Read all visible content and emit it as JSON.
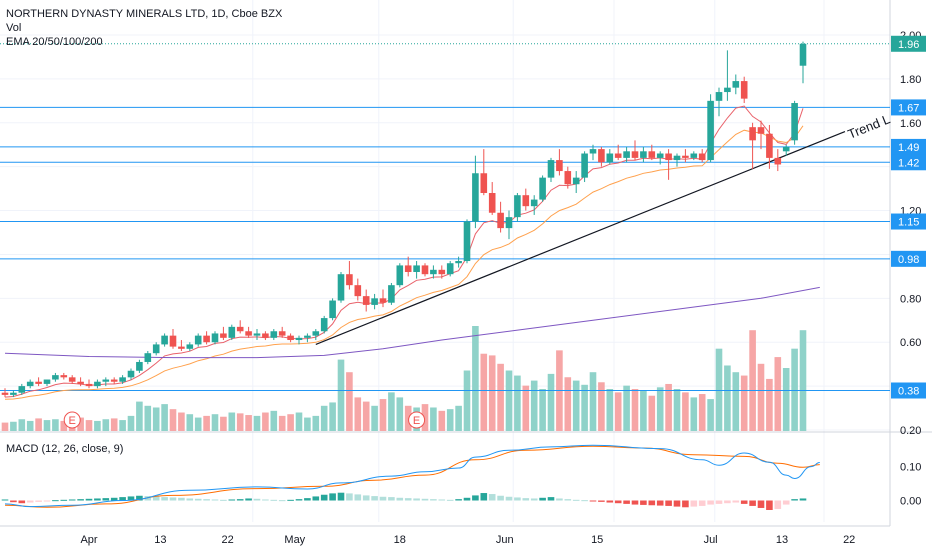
{
  "header": {
    "symbol_title": "NORTHERN DYNASTY MINERALS LTD, 1D, Cboe BZX",
    "volume_label": "Vol",
    "ema_label": "EMA 20/50/100/200",
    "macd_label": "MACD (12, 26, close, 9)"
  },
  "colors": {
    "up": "#26a69a",
    "down": "#ef5350",
    "vol_up": "#8fd2c9",
    "vol_down": "#f6a6a6",
    "level_line": "#2196f3",
    "ema20": "#e9626b",
    "ema50": "#ffa14d",
    "ema100": "#7e57c2",
    "macd_line": "#2196f3",
    "signal_line": "#ff6d00",
    "last_price_line": "#26a69a"
  },
  "chart_data": {
    "type": "candlestick",
    "x_tick_labels": [
      "Apr",
      "13",
      "22",
      "May",
      "18",
      "Jun",
      "15",
      "Jul",
      "13",
      "22"
    ],
    "y_tick_labels": [
      "2.00",
      "1.80",
      "1.60",
      "1.20",
      "0.80",
      "0.60",
      "0.20"
    ],
    "y_range": [
      0.2,
      2.05
    ],
    "horizontal_levels": [
      {
        "label": "1.67",
        "value": 1.67
      },
      {
        "label": "1.49",
        "value": 1.49
      },
      {
        "label": "1.42",
        "value": 1.42
      },
      {
        "label": "1.15",
        "value": 1.15
      },
      {
        "label": "0.98",
        "value": 0.98
      },
      {
        "label": "0.38",
        "value": 0.38
      }
    ],
    "last_price": {
      "label": "1.96",
      "value": 1.96
    },
    "trend_line": {
      "label": "Trend L",
      "start": {
        "x": 37,
        "y": 0.59
      },
      "end": {
        "x": 100,
        "y": 1.56
      }
    },
    "earnings_markers": [
      {
        "x": 8,
        "label": "E"
      },
      {
        "x": 49,
        "label": "E"
      }
    ],
    "candles": [
      [
        0.37,
        0.39,
        0.35,
        0.36
      ],
      [
        0.36,
        0.38,
        0.35,
        0.37
      ],
      [
        0.37,
        0.41,
        0.36,
        0.4
      ],
      [
        0.4,
        0.43,
        0.39,
        0.42
      ],
      [
        0.42,
        0.44,
        0.4,
        0.41
      ],
      [
        0.41,
        0.43,
        0.4,
        0.43
      ],
      [
        0.43,
        0.46,
        0.42,
        0.45
      ],
      [
        0.45,
        0.46,
        0.43,
        0.44
      ],
      [
        0.44,
        0.45,
        0.41,
        0.42
      ],
      [
        0.42,
        0.44,
        0.4,
        0.41
      ],
      [
        0.41,
        0.43,
        0.39,
        0.4
      ],
      [
        0.4,
        0.43,
        0.39,
        0.42
      ],
      [
        0.42,
        0.44,
        0.4,
        0.43
      ],
      [
        0.43,
        0.44,
        0.41,
        0.42
      ],
      [
        0.42,
        0.45,
        0.41,
        0.44
      ],
      [
        0.44,
        0.48,
        0.43,
        0.47
      ],
      [
        0.47,
        0.52,
        0.46,
        0.51
      ],
      [
        0.51,
        0.56,
        0.5,
        0.55
      ],
      [
        0.55,
        0.6,
        0.54,
        0.59
      ],
      [
        0.59,
        0.64,
        0.58,
        0.63
      ],
      [
        0.63,
        0.66,
        0.57,
        0.58
      ],
      [
        0.58,
        0.61,
        0.56,
        0.57
      ],
      [
        0.57,
        0.6,
        0.56,
        0.59
      ],
      [
        0.59,
        0.64,
        0.58,
        0.63
      ],
      [
        0.63,
        0.65,
        0.59,
        0.6
      ],
      [
        0.6,
        0.65,
        0.59,
        0.64
      ],
      [
        0.64,
        0.67,
        0.61,
        0.62
      ],
      [
        0.62,
        0.68,
        0.61,
        0.67
      ],
      [
        0.67,
        0.7,
        0.64,
        0.65
      ],
      [
        0.65,
        0.67,
        0.62,
        0.63
      ],
      [
        0.63,
        0.66,
        0.61,
        0.64
      ],
      [
        0.64,
        0.65,
        0.61,
        0.62
      ],
      [
        0.62,
        0.66,
        0.61,
        0.65
      ],
      [
        0.65,
        0.67,
        0.62,
        0.63
      ],
      [
        0.63,
        0.64,
        0.6,
        0.61
      ],
      [
        0.61,
        0.63,
        0.59,
        0.62
      ],
      [
        0.62,
        0.64,
        0.6,
        0.63
      ],
      [
        0.63,
        0.66,
        0.61,
        0.65
      ],
      [
        0.65,
        0.72,
        0.64,
        0.71
      ],
      [
        0.71,
        0.8,
        0.7,
        0.79
      ],
      [
        0.79,
        0.92,
        0.78,
        0.91
      ],
      [
        0.91,
        0.97,
        0.84,
        0.86
      ],
      [
        0.86,
        0.89,
        0.79,
        0.81
      ],
      [
        0.81,
        0.84,
        0.74,
        0.77
      ],
      [
        0.77,
        0.82,
        0.75,
        0.8
      ],
      [
        0.8,
        0.84,
        0.76,
        0.78
      ],
      [
        0.78,
        0.87,
        0.77,
        0.86
      ],
      [
        0.86,
        0.96,
        0.85,
        0.95
      ],
      [
        0.95,
        0.99,
        0.9,
        0.92
      ],
      [
        0.92,
        0.97,
        0.89,
        0.95
      ],
      [
        0.95,
        0.96,
        0.9,
        0.91
      ],
      [
        0.91,
        0.95,
        0.89,
        0.93
      ],
      [
        0.93,
        0.95,
        0.89,
        0.91
      ],
      [
        0.91,
        0.97,
        0.9,
        0.96
      ],
      [
        0.96,
        0.99,
        0.94,
        0.97
      ],
      [
        0.97,
        1.16,
        0.96,
        1.15
      ],
      [
        1.15,
        1.45,
        1.12,
        1.37
      ],
      [
        1.37,
        1.48,
        1.27,
        1.28
      ],
      [
        1.28,
        1.33,
        1.18,
        1.19
      ],
      [
        1.19,
        1.24,
        1.1,
        1.12
      ],
      [
        1.12,
        1.2,
        1.07,
        1.17
      ],
      [
        1.17,
        1.28,
        1.15,
        1.27
      ],
      [
        1.27,
        1.3,
        1.2,
        1.22
      ],
      [
        1.22,
        1.27,
        1.18,
        1.25
      ],
      [
        1.25,
        1.36,
        1.24,
        1.35
      ],
      [
        1.35,
        1.44,
        1.33,
        1.43
      ],
      [
        1.43,
        1.48,
        1.36,
        1.38
      ],
      [
        1.38,
        1.4,
        1.3,
        1.32
      ],
      [
        1.32,
        1.38,
        1.28,
        1.35
      ],
      [
        1.35,
        1.47,
        1.33,
        1.46
      ],
      [
        1.46,
        1.5,
        1.43,
        1.48
      ],
      [
        1.48,
        1.49,
        1.4,
        1.42
      ],
      [
        1.42,
        1.48,
        1.41,
        1.46
      ],
      [
        1.46,
        1.5,
        1.43,
        1.44
      ],
      [
        1.44,
        1.49,
        1.42,
        1.47
      ],
      [
        1.47,
        1.52,
        1.43,
        1.44
      ],
      [
        1.44,
        1.49,
        1.42,
        1.47
      ],
      [
        1.47,
        1.5,
        1.43,
        1.44
      ],
      [
        1.44,
        1.47,
        1.41,
        1.46
      ],
      [
        1.46,
        1.48,
        1.34,
        1.43
      ],
      [
        1.43,
        1.46,
        1.4,
        1.45
      ],
      [
        1.45,
        1.48,
        1.42,
        1.44
      ],
      [
        1.44,
        1.47,
        1.43,
        1.46
      ],
      [
        1.46,
        1.48,
        1.42,
        1.43
      ],
      [
        1.43,
        1.73,
        1.42,
        1.7
      ],
      [
        1.7,
        1.76,
        1.63,
        1.74
      ],
      [
        1.74,
        1.93,
        1.7,
        1.76
      ],
      [
        1.76,
        1.82,
        1.73,
        1.79
      ],
      [
        1.79,
        1.81,
        1.69,
        1.71
      ],
      [
        1.58,
        1.6,
        1.39,
        1.52
      ],
      [
        1.58,
        1.61,
        1.48,
        1.55
      ],
      [
        1.55,
        1.59,
        1.39,
        1.44
      ],
      [
        1.44,
        1.48,
        1.38,
        1.41
      ],
      [
        1.47,
        1.5,
        1.45,
        1.49
      ],
      [
        1.52,
        1.7,
        1.5,
        1.69
      ],
      [
        1.86,
        1.97,
        1.78,
        1.96
      ]
    ],
    "volumes": [
      10,
      11,
      14,
      12,
      15,
      13,
      14,
      12,
      18,
      16,
      13,
      12,
      14,
      15,
      13,
      18,
      35,
      30,
      28,
      32,
      26,
      22,
      20,
      16,
      18,
      20,
      17,
      22,
      21,
      19,
      18,
      22,
      24,
      18,
      20,
      22,
      16,
      18,
      30,
      34,
      85,
      70,
      40,
      35,
      30,
      38,
      46,
      40,
      30,
      28,
      32,
      28,
      24,
      26,
      30,
      72,
      125,
      92,
      90,
      80,
      72,
      66,
      54,
      60,
      50,
      68,
      96,
      64,
      60,
      55,
      70,
      58,
      50,
      46,
      54,
      50,
      48,
      42,
      52,
      56,
      50,
      46,
      40,
      44,
      38,
      98,
      78,
      70,
      66,
      120,
      80,
      62,
      88,
      75,
      98,
      120
    ],
    "macd_panel": {
      "y_tick_labels": [
        "0.10",
        "0.00"
      ],
      "y_range": [
        -0.1,
        0.2
      ],
      "macd_key_points": [
        [
          0,
          -0.01
        ],
        [
          3,
          -0.018
        ],
        [
          8,
          -0.014
        ],
        [
          14,
          0.0
        ],
        [
          22,
          0.03
        ],
        [
          30,
          0.04
        ],
        [
          36,
          0.034
        ],
        [
          40,
          0.052
        ],
        [
          46,
          0.072
        ],
        [
          50,
          0.085
        ],
        [
          54,
          0.096
        ],
        [
          56,
          0.128
        ],
        [
          60,
          0.148
        ],
        [
          65,
          0.158
        ],
        [
          70,
          0.163
        ],
        [
          78,
          0.153
        ],
        [
          83,
          0.12
        ],
        [
          85,
          0.104
        ],
        [
          88,
          0.14
        ],
        [
          91,
          0.113
        ],
        [
          93,
          0.075
        ],
        [
          94,
          0.065
        ],
        [
          96,
          0.1
        ],
        [
          97,
          0.112
        ]
      ],
      "signal_key_points": [
        [
          0,
          -0.014
        ],
        [
          5,
          -0.02
        ],
        [
          12,
          -0.01
        ],
        [
          20,
          0.015
        ],
        [
          30,
          0.035
        ],
        [
          38,
          0.042
        ],
        [
          44,
          0.06
        ],
        [
          50,
          0.075
        ],
        [
          56,
          0.12
        ],
        [
          62,
          0.148
        ],
        [
          70,
          0.16
        ],
        [
          76,
          0.155
        ],
        [
          82,
          0.135
        ],
        [
          88,
          0.13
        ],
        [
          92,
          0.11
        ],
        [
          95,
          0.098
        ],
        [
          97,
          0.106
        ]
      ],
      "histogram": [
        0.003,
        -0.005,
        -0.008,
        -0.006,
        -0.004,
        -0.002,
        0.001,
        0.002,
        0.003,
        0.004,
        0.005,
        0.006,
        0.007,
        0.008,
        0.01,
        0.012,
        0.014,
        0.013,
        0.012,
        0.01,
        0.009,
        0.008,
        0.006,
        0.005,
        0.004,
        0.003,
        0.002,
        0.003,
        0.004,
        0.006,
        0.005,
        0.003,
        0.002,
        0.001,
        0.002,
        0.004,
        0.007,
        0.012,
        0.017,
        0.021,
        0.023,
        0.021,
        0.018,
        0.015,
        0.013,
        0.011,
        0.01,
        0.008,
        0.007,
        0.006,
        0.005,
        0.004,
        0.003,
        0.002,
        0.004,
        0.008,
        0.015,
        0.022,
        0.019,
        0.014,
        0.011,
        0.009,
        0.007,
        0.006,
        0.008,
        0.01,
        0.006,
        0.004,
        0.002,
        0.001,
        -0.002,
        -0.004,
        -0.006,
        -0.008,
        -0.01,
        -0.012,
        -0.013,
        -0.014,
        -0.015,
        -0.016,
        -0.018,
        -0.02,
        -0.018,
        -0.016,
        -0.012,
        -0.01,
        -0.008,
        -0.006,
        -0.01,
        -0.016,
        -0.022,
        -0.028,
        -0.025,
        -0.012,
        0.004,
        0.006
      ]
    }
  }
}
